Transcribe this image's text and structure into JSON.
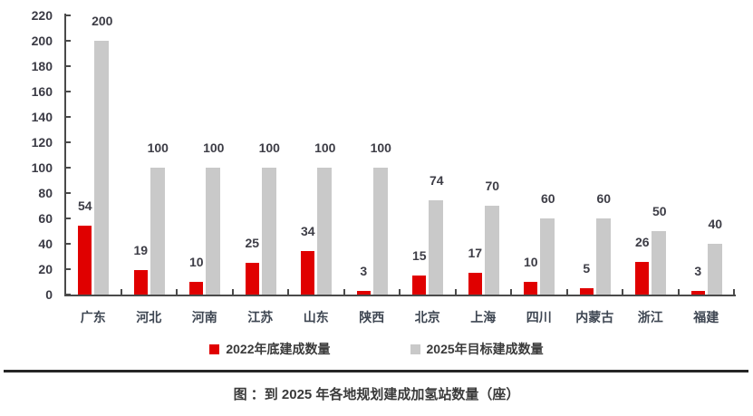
{
  "chart_data": {
    "type": "bar",
    "title": "图 ：到 2025 年各地规划建成加氢站数量（座）",
    "categories": [
      "广东",
      "河北",
      "河南",
      "江苏",
      "山东",
      "陕西",
      "北京",
      "上海",
      "四川",
      "内蒙古",
      "浙江",
      "福建"
    ],
    "series": [
      {
        "name": "2022年底建成数量",
        "color": "#e00000",
        "values": [
          54,
          19,
          10,
          25,
          34,
          3,
          15,
          17,
          10,
          5,
          26,
          3
        ]
      },
      {
        "name": "2025年目标建成数量",
        "color": "#c9c9c9",
        "values": [
          200,
          100,
          100,
          100,
          100,
          100,
          74,
          70,
          60,
          60,
          50,
          40
        ]
      }
    ],
    "ylim": [
      0,
      220
    ],
    "ytick_step": 20,
    "yticks": [
      "0",
      "20",
      "40",
      "60",
      "80",
      "100",
      "120",
      "140",
      "160",
      "180",
      "200",
      "220"
    ],
    "grid": false,
    "data_labels": true,
    "legend_position": "bottom",
    "axis_color": "#4a4a4a",
    "text_color": "#3a3a3a"
  }
}
